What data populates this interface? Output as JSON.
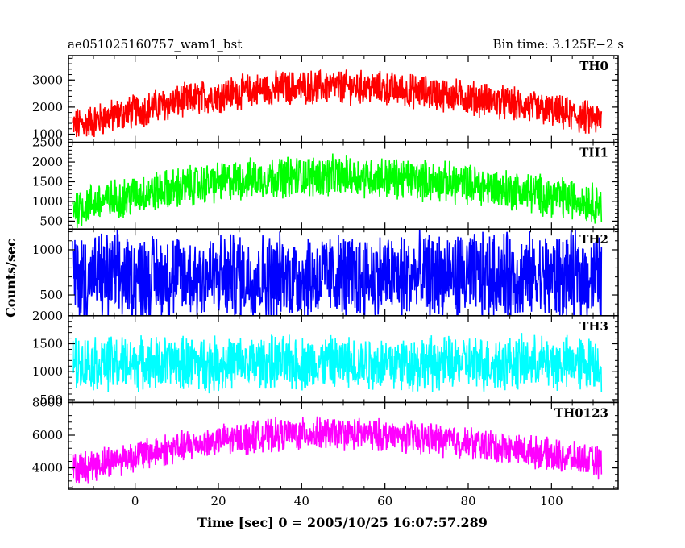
{
  "header": {
    "title": "ae051025160757_wam1_bst",
    "bin_time": "Bin time: 3.125E−2 s"
  },
  "chart_data": {
    "type": "line",
    "xlabel": "Time [sec] 0 = 2005/10/25 16:07:57.289",
    "ylabel": "Counts/sec",
    "xlim": [
      -16,
      116
    ],
    "x_ticks": [
      "0",
      "20",
      "40",
      "60",
      "80",
      "100"
    ],
    "data_x_range": [
      -15,
      112
    ],
    "panels": [
      {
        "name": "TH0",
        "color": "#ff0000",
        "ylim": [
          700,
          3900
        ],
        "y_ticks": [
          "1000",
          "2000",
          "3000"
        ],
        "baseline_start": 1300,
        "baseline_peak": 2750,
        "baseline_end": 1500,
        "peak_x": 45,
        "noise_amplitude": 550
      },
      {
        "name": "TH1",
        "color": "#00ff00",
        "ylim": [
          300,
          2500
        ],
        "y_ticks": [
          "500",
          "1000",
          "1500",
          "2000",
          "2500"
        ],
        "baseline_start": 850,
        "baseline_peak": 1650,
        "baseline_end": 950,
        "peak_x": 45,
        "noise_amplitude": 450
      },
      {
        "name": "TH2",
        "color": "#0000ff",
        "ylim": [
          270,
          1230
        ],
        "y_ticks": [
          "500",
          "1000"
        ],
        "baseline_start": 700,
        "baseline_peak": 700,
        "baseline_end": 700,
        "peak_x": 45,
        "noise_amplitude": 420
      },
      {
        "name": "TH3",
        "color": "#00ffff",
        "ylim": [
          450,
          2000
        ],
        "y_ticks": [
          "500",
          "1000",
          "1500",
          "2000"
        ],
        "baseline_start": 1150,
        "baseline_peak": 1150,
        "baseline_end": 1150,
        "peak_x": 45,
        "noise_amplitude": 420
      },
      {
        "name": "TH0123",
        "color": "#ff00ff",
        "ylim": [
          2700,
          8000
        ],
        "y_ticks": [
          "4000",
          "6000",
          "8000"
        ],
        "baseline_start": 3900,
        "baseline_peak": 6100,
        "baseline_end": 4300,
        "peak_x": 45,
        "noise_amplitude": 850
      }
    ]
  }
}
